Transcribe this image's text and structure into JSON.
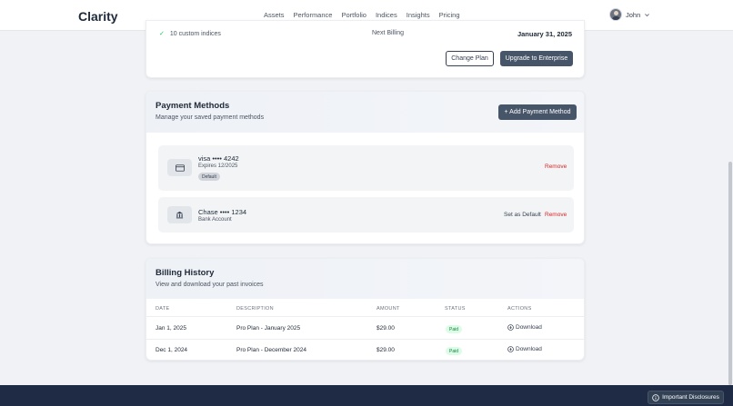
{
  "header": {
    "logo": "Clarity",
    "nav": [
      "Assets",
      "Performance",
      "Portfolio",
      "Indices",
      "Insights",
      "Pricing"
    ],
    "user_name": "John"
  },
  "plan": {
    "feature": "10 custom indices",
    "next_billing_label": "Next Billing",
    "next_billing_date": "January 31, 2025",
    "change_plan_label": "Change Plan",
    "upgrade_label": "Upgrade to Enterprise"
  },
  "payment_methods": {
    "title": "Payment Methods",
    "subtitle": "Manage your saved payment methods",
    "add_label": "+ Add Payment Method",
    "items": [
      {
        "name": "visa •••• 4242",
        "sub": "Expires 12/2025",
        "badge": "Default",
        "remove": "Remove",
        "icon": "credit-card-icon"
      },
      {
        "name": "Chase •••• 1234",
        "sub": "Bank Account",
        "set_default": "Set as Default",
        "remove": "Remove",
        "icon": "bank-icon"
      }
    ]
  },
  "billing_history": {
    "title": "Billing History",
    "subtitle": "View and download your past invoices",
    "columns": [
      "DATE",
      "DESCRIPTION",
      "AMOUNT",
      "STATUS",
      "ACTIONS"
    ],
    "rows": [
      {
        "date": "Jan 1, 2025",
        "description": "Pro Plan - January 2025",
        "amount": "$29.00",
        "status": "Paid",
        "action": "Download"
      },
      {
        "date": "Dec 1, 2024",
        "description": "Pro Plan - December 2024",
        "amount": "$29.00",
        "status": "Paid",
        "action": "Download"
      }
    ]
  },
  "footer": {
    "disclosure_label": "Important Disclosures"
  },
  "colors": {
    "accent": "#475569",
    "danger": "#dc2626",
    "success": "#15803d",
    "footer": "#1f2a44"
  }
}
